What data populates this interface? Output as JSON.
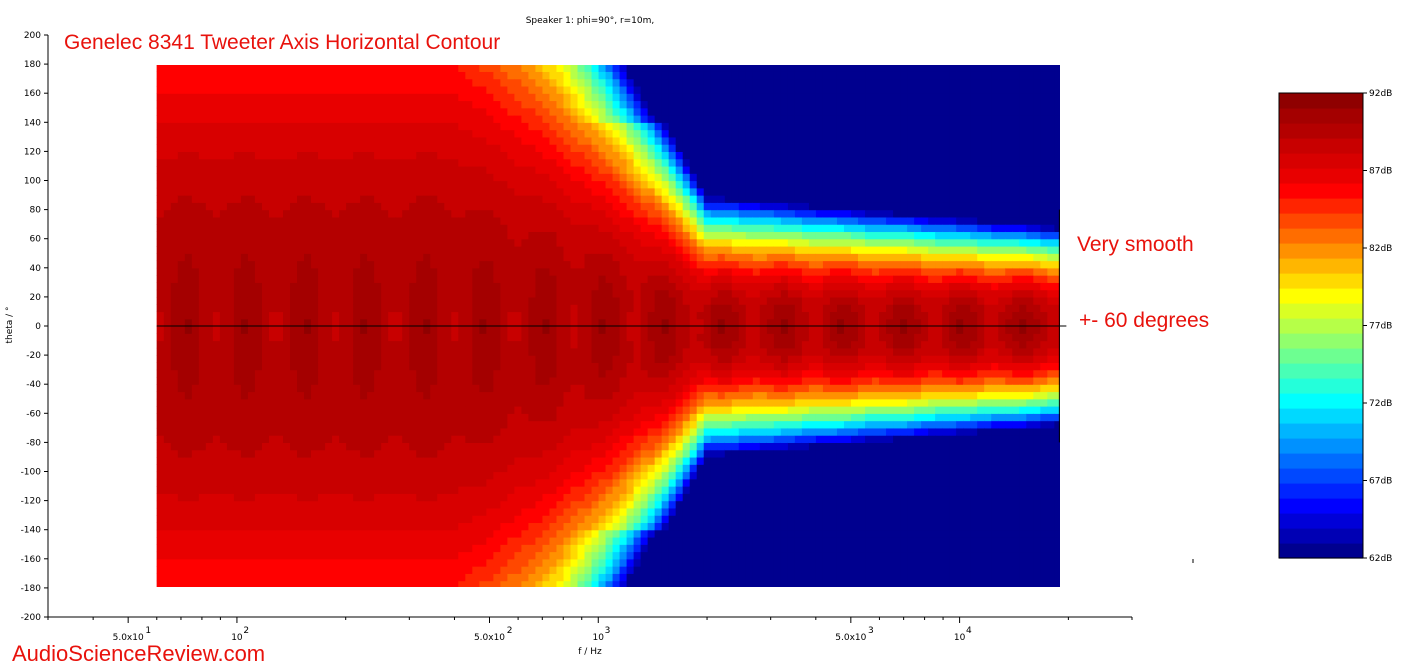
{
  "chart_data": {
    "type": "heatmap",
    "header": "Speaker 1: phi=90°, r=10m,",
    "title": "Genelec 8341 Tweeter Axis Horizontal Contour",
    "xlabel": "f / Hz",
    "ylabel": "theta / °",
    "x_scale": "log",
    "xlim": [
      30,
      30000
    ],
    "ylim": [
      -200,
      200
    ],
    "data_x_range": [
      60,
      20000
    ],
    "data_y_range": [
      -180,
      180
    ],
    "x_ticks": [
      {
        "value": 50,
        "label": "5.0x10",
        "exp": "1"
      },
      {
        "value": 100,
        "label": "10",
        "exp": "2"
      },
      {
        "value": 500,
        "label": "5.0x10",
        "exp": "2"
      },
      {
        "value": 1000,
        "label": "10",
        "exp": "3"
      },
      {
        "value": 5000,
        "label": "5.0x10",
        "exp": "3"
      },
      {
        "value": 10000,
        "label": "10",
        "exp": "4"
      }
    ],
    "y_ticks": [
      200,
      180,
      160,
      140,
      120,
      100,
      80,
      60,
      40,
      20,
      0,
      -20,
      -40,
      -60,
      -80,
      -100,
      -120,
      -140,
      -160,
      -180,
      -200
    ],
    "colorbar": {
      "min": 62,
      "max": 92,
      "ticks": [
        {
          "value": 92,
          "label": "92dB"
        },
        {
          "value": 87,
          "label": "87dB"
        },
        {
          "value": 82,
          "label": "82dB"
        },
        {
          "value": 77,
          "label": "77dB"
        },
        {
          "value": 72,
          "label": "72dB"
        },
        {
          "value": 67,
          "label": "67dB"
        },
        {
          "value": 62,
          "label": "62dB"
        }
      ],
      "colors": [
        "#00008f",
        "#0000b4",
        "#0000d8",
        "#0000ff",
        "#0024ff",
        "#0048ff",
        "#006cff",
        "#0091ff",
        "#00b5ff",
        "#00d9ff",
        "#00ffff",
        "#24ffda",
        "#48ffb6",
        "#6dff91",
        "#91ff6d",
        "#b6ff48",
        "#daff24",
        "#ffff00",
        "#ffda00",
        "#ffb600",
        "#ff9100",
        "#ff6d00",
        "#ff4800",
        "#ff2400",
        "#ff0000",
        "#e80000",
        "#d80000",
        "#c80000",
        "#b40000",
        "#a40000",
        "#8f0000"
      ]
    },
    "reference_line_theta": 0,
    "reference_line_freq": 20000
  },
  "annotations": {
    "note1": "Very smooth",
    "note2": "+- 60 degrees"
  },
  "watermark": "AudioScienceReview.com"
}
